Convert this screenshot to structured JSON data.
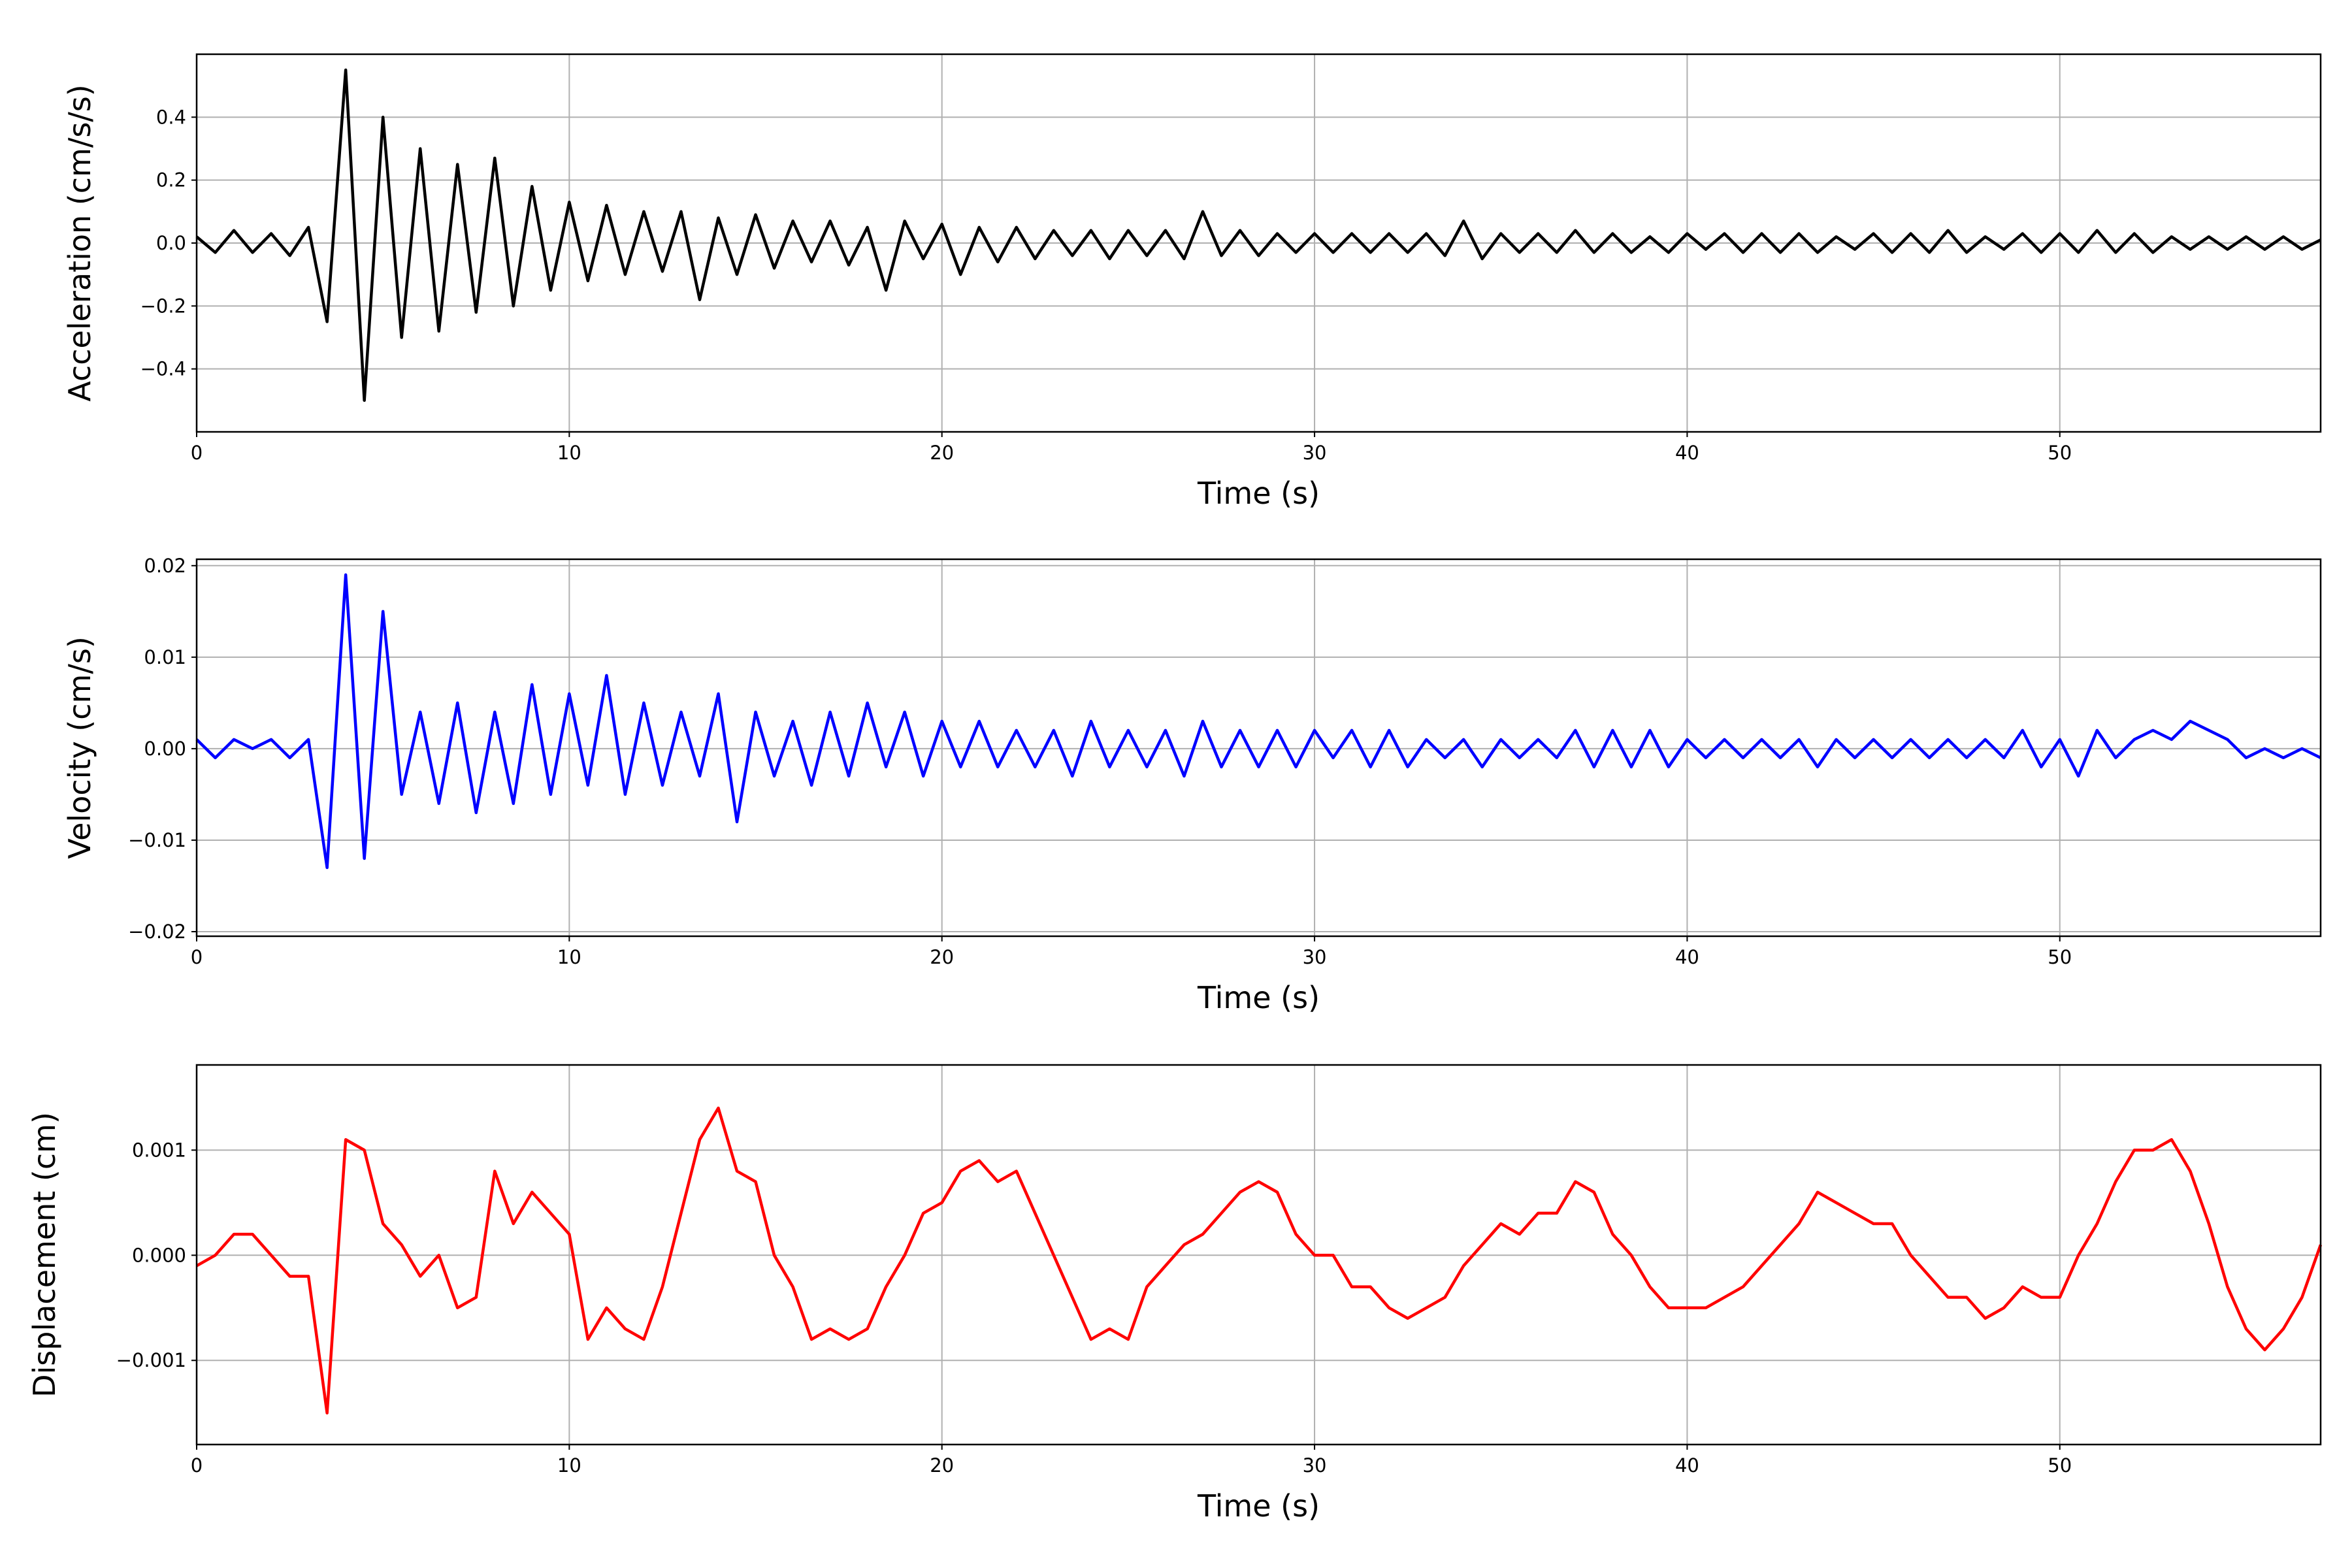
{
  "chart_data": [
    {
      "type": "line",
      "y_label": "Acceleration (cm/s/s)",
      "x_label": "Time (s)",
      "color": "#000000",
      "grid": true,
      "xlim": [
        0,
        57
      ],
      "xticks": [
        0,
        10,
        20,
        30,
        40,
        50
      ],
      "ylim": [
        -0.6,
        0.6
      ],
      "yticks": [
        {
          "value": -0.4,
          "label": "−0.4"
        },
        {
          "value": -0.2,
          "label": "−0.2"
        },
        {
          "value": 0,
          "label": "0.0"
        },
        0.2,
        0.4
      ],
      "x": [
        0,
        0.5,
        1,
        1.5,
        2,
        2.5,
        3,
        3.5,
        4,
        4.5,
        5,
        5.5,
        6,
        6.5,
        7,
        7.5,
        8,
        8.5,
        9,
        9.5,
        10,
        10.5,
        11,
        11.5,
        12,
        12.5,
        13,
        13.5,
        14,
        14.5,
        15,
        15.5,
        16,
        16.5,
        17,
        17.5,
        18,
        18.5,
        19,
        19.5,
        20,
        20.5,
        21,
        21.5,
        22,
        22.5,
        23,
        23.5,
        24,
        24.5,
        25,
        25.5,
        26,
        26.5,
        27,
        27.5,
        28,
        28.5,
        29,
        29.5,
        30,
        30.5,
        31,
        31.5,
        32,
        32.5,
        33,
        33.5,
        34,
        34.5,
        35,
        35.5,
        36,
        36.5,
        37,
        37.5,
        38,
        38.5,
        39,
        39.5,
        40,
        40.5,
        41,
        41.5,
        42,
        42.5,
        43,
        43.5,
        44,
        44.5,
        45,
        45.5,
        46,
        46.5,
        47,
        47.5,
        48,
        48.5,
        49,
        49.5,
        50,
        50.5,
        51,
        51.5,
        52,
        52.5,
        53,
        53.5,
        54,
        54.5,
        55,
        55.5,
        56,
        56.5,
        57
      ],
      "values": [
        0.02,
        -0.03,
        0.04,
        -0.03,
        0.03,
        -0.04,
        0.05,
        -0.25,
        0.55,
        -0.5,
        0.4,
        -0.3,
        0.3,
        -0.28,
        0.25,
        -0.22,
        0.27,
        -0.2,
        0.18,
        -0.15,
        0.13,
        -0.12,
        0.12,
        -0.1,
        0.1,
        -0.09,
        0.1,
        -0.18,
        0.08,
        -0.1,
        0.09,
        -0.08,
        0.07,
        -0.06,
        0.07,
        -0.07,
        0.05,
        -0.15,
        0.07,
        -0.05,
        0.06,
        -0.1,
        0.05,
        -0.06,
        0.05,
        -0.05,
        0.04,
        -0.04,
        0.04,
        -0.05,
        0.04,
        -0.04,
        0.04,
        -0.05,
        0.1,
        -0.04,
        0.04,
        -0.04,
        0.03,
        -0.03,
        0.03,
        -0.03,
        0.03,
        -0.03,
        0.03,
        -0.03,
        0.03,
        -0.04,
        0.07,
        -0.05,
        0.03,
        -0.03,
        0.03,
        -0.03,
        0.04,
        -0.03,
        0.03,
        -0.03,
        0.02,
        -0.03,
        0.03,
        -0.02,
        0.03,
        -0.03,
        0.03,
        -0.03,
        0.03,
        -0.03,
        0.02,
        -0.02,
        0.03,
        -0.03,
        0.03,
        -0.03,
        0.04,
        -0.03,
        0.02,
        -0.02,
        0.03,
        -0.03,
        0.03,
        -0.03,
        0.04,
        -0.03,
        0.03,
        -0.03,
        0.02,
        -0.02,
        0.02,
        -0.02,
        0.02,
        -0.02,
        0.02,
        -0.02,
        0.01
      ]
    },
    {
      "type": "line",
      "y_label": "Velocity (cm/s)",
      "x_label": "Time (s)",
      "color": "#0000ff",
      "grid": true,
      "xlim": [
        0,
        57
      ],
      "xticks": [
        0,
        10,
        20,
        30,
        40,
        50
      ],
      "ylim": [
        -0.0205,
        0.0207
      ],
      "yticks": [
        {
          "value": -0.02,
          "label": "−0.02"
        },
        {
          "value": -0.01,
          "label": "−0.01"
        },
        {
          "value": 0,
          "label": "0.00"
        },
        0.01,
        0.02
      ],
      "x": [
        0,
        0.5,
        1,
        1.5,
        2,
        2.5,
        3,
        3.5,
        4,
        4.5,
        5,
        5.5,
        6,
        6.5,
        7,
        7.5,
        8,
        8.5,
        9,
        9.5,
        10,
        10.5,
        11,
        11.5,
        12,
        12.5,
        13,
        13.5,
        14,
        14.5,
        15,
        15.5,
        16,
        16.5,
        17,
        17.5,
        18,
        18.5,
        19,
        19.5,
        20,
        20.5,
        21,
        21.5,
        22,
        22.5,
        23,
        23.5,
        24,
        24.5,
        25,
        25.5,
        26,
        26.5,
        27,
        27.5,
        28,
        28.5,
        29,
        29.5,
        30,
        30.5,
        31,
        31.5,
        32,
        32.5,
        33,
        33.5,
        34,
        34.5,
        35,
        35.5,
        36,
        36.5,
        37,
        37.5,
        38,
        38.5,
        39,
        39.5,
        40,
        40.5,
        41,
        41.5,
        42,
        42.5,
        43,
        43.5,
        44,
        44.5,
        45,
        45.5,
        46,
        46.5,
        47,
        47.5,
        48,
        48.5,
        49,
        49.5,
        50,
        50.5,
        51,
        51.5,
        52,
        52.5,
        53,
        53.5,
        54,
        54.5,
        55,
        55.5,
        56,
        56.5,
        57
      ],
      "values": [
        0.001,
        -0.001,
        0.001,
        0,
        0.001,
        -0.001,
        0.001,
        -0.013,
        0.019,
        -0.012,
        0.015,
        -0.005,
        0.004,
        -0.006,
        0.005,
        -0.007,
        0.004,
        -0.006,
        0.007,
        -0.005,
        0.006,
        -0.004,
        0.008,
        -0.005,
        0.005,
        -0.004,
        0.004,
        -0.003,
        0.006,
        -0.008,
        0.004,
        -0.003,
        0.003,
        -0.004,
        0.004,
        -0.003,
        0.005,
        -0.002,
        0.004,
        -0.003,
        0.003,
        -0.002,
        0.003,
        -0.002,
        0.002,
        -0.002,
        0.002,
        -0.003,
        0.003,
        -0.002,
        0.002,
        -0.002,
        0.002,
        -0.003,
        0.003,
        -0.002,
        0.002,
        -0.002,
        0.002,
        -0.002,
        0.002,
        -0.001,
        0.002,
        -0.002,
        0.002,
        -0.002,
        0.001,
        -0.001,
        0.001,
        -0.002,
        0.001,
        -0.001,
        0.001,
        -0.001,
        0.002,
        -0.002,
        0.002,
        -0.002,
        0.002,
        -0.002,
        0.001,
        -0.001,
        0.001,
        -0.001,
        0.001,
        -0.001,
        0.001,
        -0.002,
        0.001,
        -0.001,
        0.001,
        -0.001,
        0.001,
        -0.001,
        0.001,
        -0.001,
        0.001,
        -0.001,
        0.002,
        -0.002,
        0.001,
        -0.003,
        0.002,
        -0.001,
        0.001,
        0.002,
        0.001,
        0.003,
        0.002,
        0.001,
        -0.001,
        0,
        -0.001,
        0,
        -0.001
      ]
    },
    {
      "type": "line",
      "y_label": "Displacement (cm)",
      "x_label": "Time (s)",
      "color": "#ff0000",
      "grid": true,
      "xlim": [
        0,
        57
      ],
      "xticks": [
        0,
        10,
        20,
        30,
        40,
        50
      ],
      "ylim": [
        -0.0018,
        0.00181
      ],
      "yticks": [
        {
          "value": -0.001,
          "label": "−0.001"
        },
        {
          "value": 0,
          "label": "0.000"
        },
        0.001
      ],
      "x": [
        0,
        0.5,
        1,
        1.5,
        2,
        2.5,
        3,
        3.5,
        4,
        4.5,
        5,
        5.5,
        6,
        6.5,
        7,
        7.5,
        8,
        8.5,
        9,
        9.5,
        10,
        10.5,
        11,
        11.5,
        12,
        12.5,
        13,
        13.5,
        14,
        14.5,
        15,
        15.5,
        16,
        16.5,
        17,
        17.5,
        18,
        18.5,
        19,
        19.5,
        20,
        20.5,
        21,
        21.5,
        22,
        22.5,
        23,
        23.5,
        24,
        24.5,
        25,
        25.5,
        26,
        26.5,
        27,
        27.5,
        28,
        28.5,
        29,
        29.5,
        30,
        30.5,
        31,
        31.5,
        32,
        32.5,
        33,
        33.5,
        34,
        34.5,
        35,
        35.5,
        36,
        36.5,
        37,
        37.5,
        38,
        38.5,
        39,
        39.5,
        40,
        40.5,
        41,
        41.5,
        42,
        42.5,
        43,
        43.5,
        44,
        44.5,
        45,
        45.5,
        46,
        46.5,
        47,
        47.5,
        48,
        48.5,
        49,
        49.5,
        50,
        50.5,
        51,
        51.5,
        52,
        52.5,
        53,
        53.5,
        54,
        54.5,
        55,
        55.5,
        56,
        56.5,
        57
      ],
      "values": [
        -0.0001,
        0,
        0.0002,
        0.0002,
        0,
        -0.0002,
        -0.0002,
        -0.0015,
        0.0011,
        0.001,
        0.0003,
        0.0001,
        -0.0002,
        0,
        -0.0005,
        -0.0004,
        0.0008,
        0.0003,
        0.0006,
        0.0004,
        0.0002,
        -0.0008,
        -0.0005,
        -0.0007,
        -0.0008,
        -0.0003,
        0.0004,
        0.0011,
        0.0014,
        0.0008,
        0.0007,
        0,
        -0.0003,
        -0.0008,
        -0.0007,
        -0.0008,
        -0.0007,
        -0.0003,
        0,
        0.0004,
        0.0005,
        0.0008,
        0.0009,
        0.0007,
        0.0008,
        0.0004,
        0,
        -0.0004,
        -0.0008,
        -0.0007,
        -0.0008,
        -0.0003,
        -0.0001,
        0.0001,
        0.0002,
        0.0004,
        0.0006,
        0.0007,
        0.0006,
        0.0002,
        0,
        0,
        -0.0003,
        -0.0003,
        -0.0005,
        -0.0006,
        -0.0005,
        -0.0004,
        -0.0001,
        0.0001,
        0.0003,
        0.0002,
        0.0004,
        0.0004,
        0.0007,
        0.0006,
        0.0002,
        0,
        -0.0003,
        -0.0005,
        -0.0005,
        -0.0005,
        -0.0004,
        -0.0003,
        -0.0001,
        0.0001,
        0.0003,
        0.0006,
        0.0005,
        0.0004,
        0.0003,
        0.0003,
        0,
        -0.0002,
        -0.0004,
        -0.0004,
        -0.0006,
        -0.0005,
        -0.0003,
        -0.0004,
        -0.0004,
        0,
        0.0003,
        0.0007,
        0.001,
        0.001,
        0.0011,
        0.0008,
        0.0003,
        -0.0003,
        -0.0007,
        -0.0009,
        -0.0007,
        -0.0004,
        0.0001
      ]
    }
  ]
}
